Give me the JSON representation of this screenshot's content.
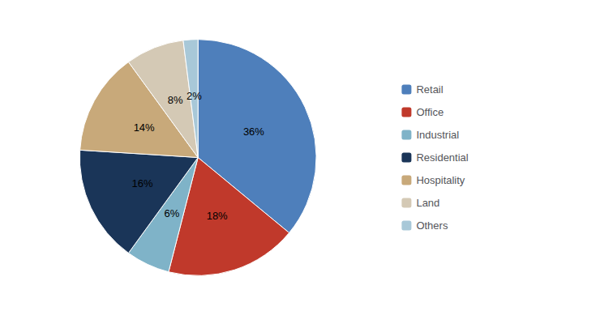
{
  "chart_data": {
    "type": "pie",
    "categories": [
      "Retail",
      "Office",
      "Industrial",
      "Residential",
      "Hospitality",
      "Land",
      "Others"
    ],
    "values": [
      36,
      18,
      6,
      16,
      14,
      8,
      2
    ],
    "value_labels": [
      "36%",
      "18%",
      "6%",
      "16%",
      "14%",
      "8%",
      "2%"
    ],
    "colors": [
      "#4e7fbb",
      "#c0392b",
      "#7fb3c8",
      "#1a3558",
      "#c8a97a",
      "#d4c9b5",
      "#a8c8d8"
    ],
    "data_labels": true,
    "legend": "right"
  }
}
